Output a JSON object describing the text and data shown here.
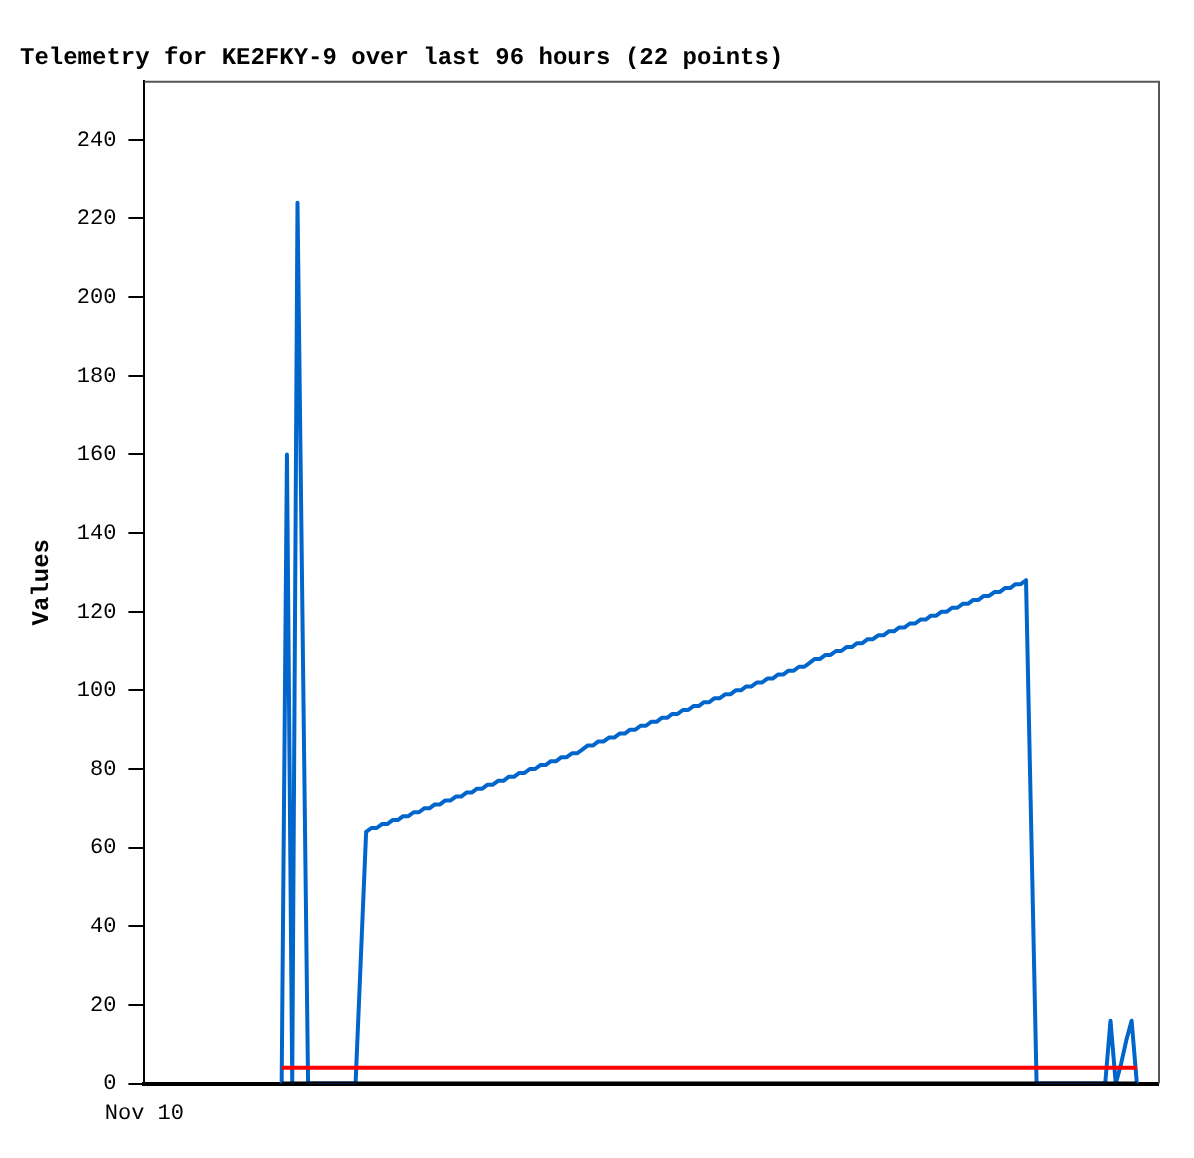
{
  "chart_data": {
    "type": "line",
    "title": "Telemetry for KE2FKY-9 over last 96 hours (22 points)",
    "ylabel": "Values",
    "categories": [
      "Nov 10",
      null,
      null,
      null,
      null,
      null,
      null,
      null,
      null,
      null,
      null,
      null,
      null,
      null,
      null,
      null,
      null,
      null,
      null,
      null,
      null,
      null,
      null,
      null,
      null,
      null,
      null,
      null,
      null,
      null,
      null,
      null,
      null,
      null,
      null,
      null,
      null,
      null,
      null,
      null,
      null,
      null,
      null,
      null,
      null,
      null,
      null,
      null,
      null,
      null,
      null,
      null,
      null,
      null,
      null,
      null,
      null,
      null,
      null,
      null,
      null,
      null,
      null,
      null,
      null,
      null,
      null,
      null,
      null,
      null,
      null,
      null,
      null,
      null,
      null,
      null,
      null,
      null,
      null,
      null,
      null,
      null,
      null,
      null,
      null,
      null,
      null,
      null,
      null,
      null,
      null,
      null,
      null,
      null,
      null,
      null,
      null,
      null,
      null,
      null,
      null,
      null,
      null,
      null,
      null,
      null,
      null,
      null,
      null,
      null,
      null,
      null,
      null,
      null,
      null,
      null,
      null,
      null,
      null,
      null,
      null,
      null,
      null,
      null,
      null,
      null,
      null,
      null,
      null,
      null,
      null,
      null,
      null,
      null,
      null,
      null,
      null,
      null,
      null,
      null,
      null,
      null,
      null,
      null,
      null,
      null,
      null,
      null,
      null,
      null,
      null,
      null,
      null,
      null,
      null,
      null,
      null,
      null,
      null,
      null,
      null,
      null,
      null,
      null,
      null,
      null,
      null,
      null,
      null,
      null,
      null,
      null,
      null,
      null,
      null,
      null,
      null,
      null,
      null,
      null,
      null,
      null,
      null,
      null,
      null,
      null,
      null,
      null,
      null,
      null,
      null,
      null,
      null
    ],
    "ylim": [
      0,
      255
    ],
    "yticks": [
      0,
      20,
      40,
      60,
      80,
      100,
      120,
      140,
      160,
      180,
      200,
      220,
      240
    ],
    "grid": false,
    "legend": false,
    "marker": "none",
    "line_style": "solid",
    "series": [
      {
        "color": "#0066cc",
        "values": [
          null,
          null,
          null,
          null,
          null,
          null,
          null,
          null,
          null,
          null,
          null,
          null,
          null,
          null,
          null,
          null,
          null,
          null,
          null,
          null,
          null,
          null,
          null,
          null,
          null,
          null,
          0,
          160,
          0,
          224,
          112,
          0,
          0,
          0,
          0,
          0,
          0,
          0,
          0,
          0,
          0,
          32,
          64,
          65,
          65,
          66,
          66,
          67,
          67,
          68,
          68,
          69,
          69,
          70,
          70,
          71,
          71,
          72,
          72,
          73,
          73,
          74,
          74,
          75,
          75,
          76,
          76,
          77,
          77,
          78,
          78,
          79,
          79,
          80,
          80,
          81,
          81,
          82,
          82,
          83,
          83,
          84,
          84,
          85,
          86,
          86,
          87,
          87,
          88,
          88,
          89,
          89,
          90,
          90,
          91,
          91,
          92,
          92,
          93,
          93,
          94,
          94,
          95,
          95,
          96,
          96,
          97,
          97,
          98,
          98,
          99,
          99,
          100,
          100,
          101,
          101,
          102,
          102,
          103,
          103,
          104,
          104,
          105,
          105,
          106,
          106,
          107,
          108,
          108,
          109,
          109,
          110,
          110,
          111,
          111,
          112,
          112,
          113,
          113,
          114,
          114,
          115,
          115,
          116,
          116,
          117,
          117,
          118,
          118,
          119,
          119,
          120,
          120,
          121,
          121,
          122,
          122,
          123,
          123,
          124,
          124,
          125,
          125,
          126,
          126,
          127,
          127,
          128,
          64,
          0,
          0,
          0,
          0,
          0,
          0,
          0,
          0,
          0,
          0,
          0,
          0,
          0,
          0,
          16,
          0,
          5,
          11,
          16,
          0,
          null,
          null,
          null,
          null
        ]
      },
      {
        "color": "#ff0000",
        "values": [
          null,
          null,
          null,
          null,
          null,
          null,
          null,
          null,
          null,
          null,
          null,
          null,
          null,
          null,
          null,
          null,
          null,
          null,
          null,
          null,
          null,
          null,
          null,
          null,
          null,
          null,
          4,
          4,
          4,
          4,
          4,
          4,
          4,
          4,
          4,
          4,
          4,
          4,
          4,
          4,
          4,
          4,
          4,
          4,
          4,
          4,
          4,
          4,
          4,
          4,
          4,
          4,
          4,
          4,
          4,
          4,
          4,
          4,
          4,
          4,
          4,
          4,
          4,
          4,
          4,
          4,
          4,
          4,
          4,
          4,
          4,
          4,
          4,
          4,
          4,
          4,
          4,
          4,
          4,
          4,
          4,
          4,
          4,
          4,
          4,
          4,
          4,
          4,
          4,
          4,
          4,
          4,
          4,
          4,
          4,
          4,
          4,
          4,
          4,
          4,
          4,
          4,
          4,
          4,
          4,
          4,
          4,
          4,
          4,
          4,
          4,
          4,
          4,
          4,
          4,
          4,
          4,
          4,
          4,
          4,
          4,
          4,
          4,
          4,
          4,
          4,
          4,
          4,
          4,
          4,
          4,
          4,
          4,
          4,
          4,
          4,
          4,
          4,
          4,
          4,
          4,
          4,
          4,
          4,
          4,
          4,
          4,
          4,
          4,
          4,
          4,
          4,
          4,
          4,
          4,
          4,
          4,
          4,
          4,
          4,
          4,
          4,
          4,
          4,
          4,
          4,
          4,
          4,
          4,
          4,
          4,
          4,
          4,
          4,
          4,
          4,
          4,
          4,
          4,
          4,
          4,
          4,
          4,
          4,
          4,
          4,
          4,
          4,
          4,
          null,
          null,
          null,
          null
        ]
      },
      {
        "color": "#000000",
        "values": [
          null,
          null,
          null,
          null,
          null,
          null,
          null,
          null,
          null,
          null,
          null,
          null,
          null,
          null,
          null,
          null,
          null,
          null,
          null,
          null,
          null,
          null,
          null,
          null,
          null,
          null,
          0,
          0,
          0,
          0,
          0,
          0,
          0,
          0,
          0,
          0,
          0,
          0,
          0,
          0,
          0,
          0,
          0,
          0,
          0,
          0,
          0,
          0,
          0,
          0,
          0,
          0,
          0,
          0,
          0,
          0,
          0,
          0,
          0,
          0,
          0,
          0,
          0,
          0,
          0,
          0,
          0,
          0,
          0,
          0,
          0,
          0,
          0,
          0,
          0,
          0,
          0,
          0,
          0,
          0,
          0,
          0,
          0,
          0,
          0,
          0,
          0,
          0,
          0,
          0,
          0,
          0,
          0,
          0,
          0,
          0,
          0,
          0,
          0,
          0,
          0,
          0,
          0,
          0,
          0,
          0,
          0,
          0,
          0,
          0,
          0,
          0,
          0,
          0,
          0,
          0,
          0,
          0,
          0,
          0,
          0,
          0,
          0,
          0,
          0,
          0,
          0,
          0,
          0,
          0,
          0,
          0,
          0,
          0,
          0,
          0,
          0,
          0,
          0,
          0,
          0,
          0,
          0,
          0,
          0,
          0,
          0,
          0,
          0,
          0,
          0,
          0,
          0,
          0,
          0,
          0,
          0,
          0,
          0,
          0,
          0,
          0,
          0,
          0,
          0,
          0,
          0,
          0,
          0,
          0,
          0,
          0,
          0,
          0,
          0,
          0,
          0,
          0,
          0,
          0,
          0,
          0,
          0,
          0,
          0,
          0,
          0,
          0,
          0,
          null,
          null,
          null,
          null
        ]
      }
    ]
  }
}
